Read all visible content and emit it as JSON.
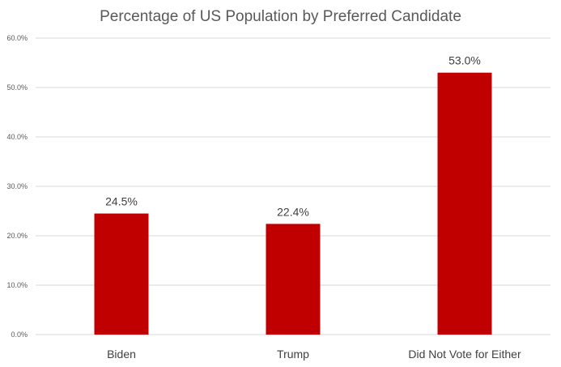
{
  "chart_data": {
    "type": "bar",
    "title": "Percentage of US Population by Preferred Candidate",
    "xlabel": "",
    "ylabel": "",
    "categories": [
      "Biden",
      "Trump",
      "Did Not Vote for Either"
    ],
    "values": [
      24.5,
      22.4,
      53.0
    ],
    "data_labels": [
      "24.5%",
      "22.4%",
      "53.0%"
    ],
    "ylim": [
      0,
      60
    ],
    "y_ticks": [
      0,
      10,
      20,
      30,
      40,
      50,
      60
    ],
    "y_tick_labels": [
      "0.0%",
      "10.0%",
      "20.0%",
      "30.0%",
      "40.0%",
      "50.0%",
      "60.0%"
    ],
    "grid": true,
    "legend": "none",
    "colors": {
      "bar": "#c00000",
      "grid": "#d9d9d9",
      "text": "#595959"
    }
  }
}
